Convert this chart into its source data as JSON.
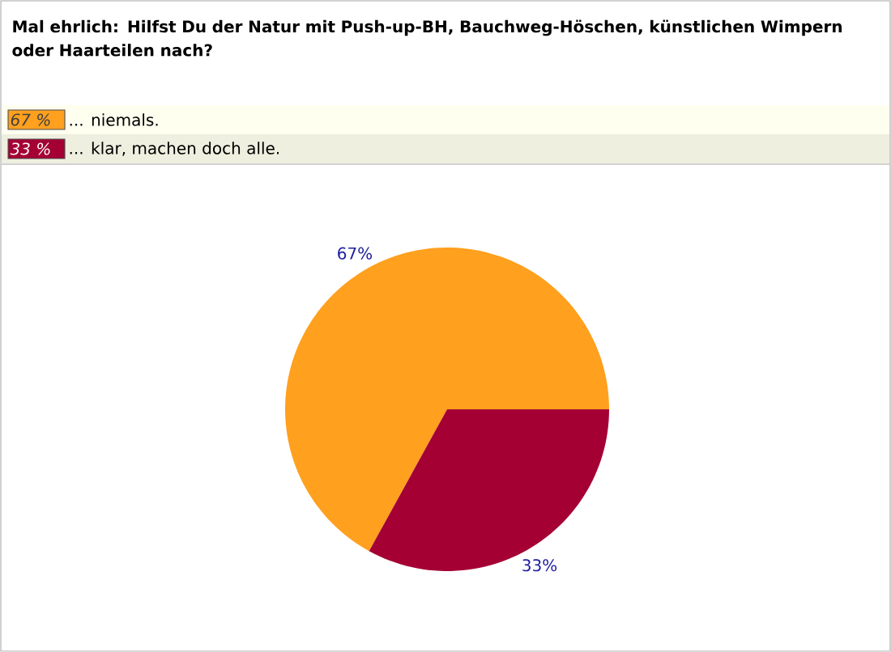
{
  "chart_data": {
    "type": "pie",
    "title": "Mal ehrlich: Hilfst Du der Natur mit Push-up-BH, Bauchweg-Höschen, künstlichen Wimpern oder Haarteilen nach?",
    "categories": [
      "... niemals.",
      "... klar, machen doch alle."
    ],
    "values": [
      67,
      33
    ],
    "colors": [
      "#ffa01e",
      "#a50034"
    ],
    "value_labels": [
      "67%",
      "33%"
    ],
    "annotations": [
      "67 %",
      "33 %"
    ],
    "legend": "top left"
  }
}
